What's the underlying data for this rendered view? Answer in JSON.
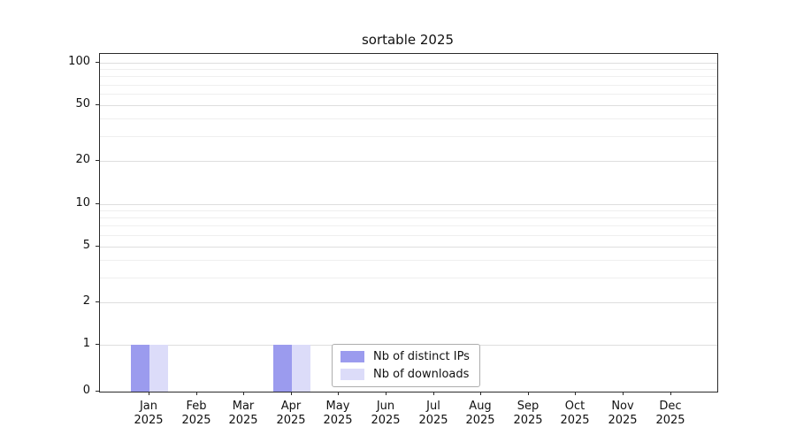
{
  "chart_data": {
    "type": "bar",
    "title": "sortable 2025",
    "categories": [
      "Jan",
      "Feb",
      "Mar",
      "Apr",
      "May",
      "Jun",
      "Jul",
      "Aug",
      "Sep",
      "Oct",
      "Nov",
      "Dec"
    ],
    "year": "2025",
    "series": [
      {
        "name": "Nb of distinct IPs",
        "color": "#9b9bee",
        "values": [
          1,
          0,
          0,
          1,
          0,
          0,
          0,
          0,
          0,
          0,
          0,
          0
        ]
      },
      {
        "name": "Nb of downloads",
        "color": "#dcdcf9",
        "values": [
          1,
          0,
          0,
          1,
          0,
          0,
          0,
          0,
          0,
          0,
          0,
          0
        ]
      }
    ],
    "yscale": "symlog",
    "yticks": [
      0,
      1,
      2,
      5,
      10,
      20,
      50,
      100
    ],
    "ylim": [
      0,
      115
    ],
    "grid": true,
    "legend_position": "bottom-center"
  }
}
